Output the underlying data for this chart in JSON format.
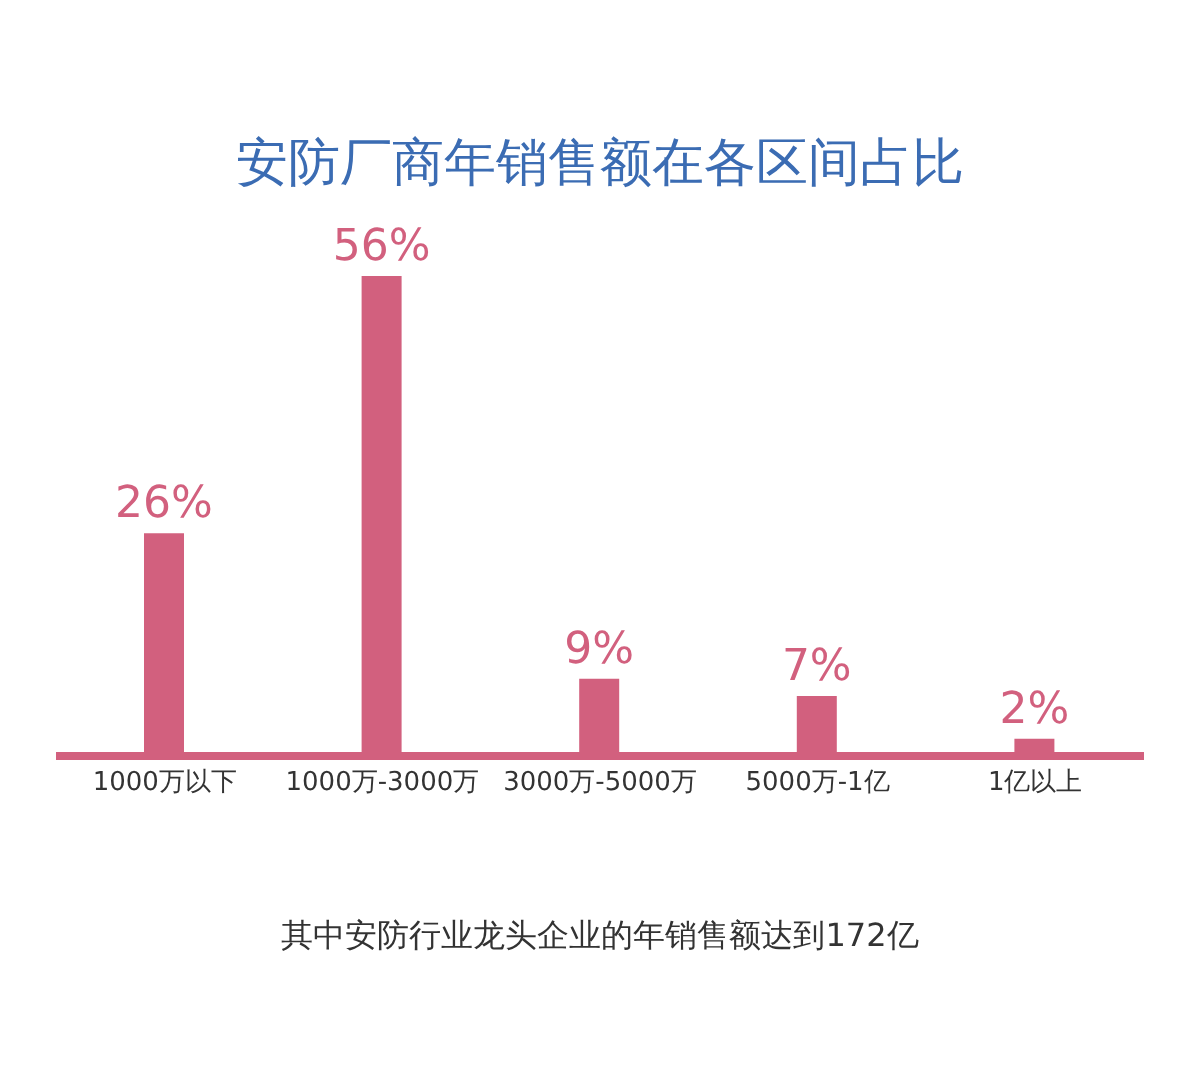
{
  "chart_data": {
    "type": "bar",
    "title": "安防厂商年销售额在各区间占比",
    "categories": [
      "1000万以下",
      "1000万-3000万",
      "3000万-5000万",
      "5000万-1亿",
      "1亿以上"
    ],
    "values": [
      26,
      56,
      9,
      7,
      2
    ],
    "value_labels": [
      "26%",
      "56%",
      "9%",
      "7%",
      "2%"
    ],
    "color": "#d2607e",
    "annotations": [
      "其中安防行业龙头企业的年销售额达到172亿"
    ]
  }
}
